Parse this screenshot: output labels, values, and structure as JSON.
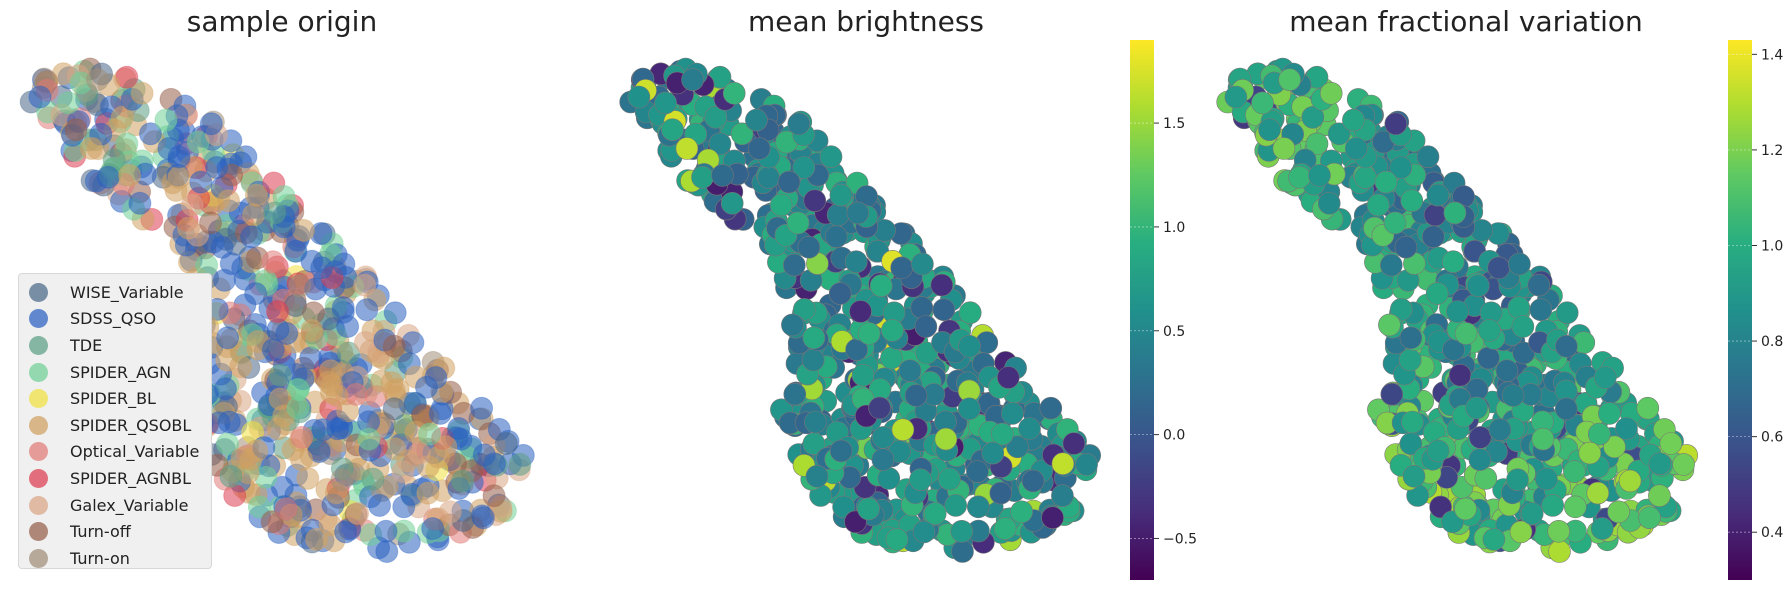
{
  "chart_data": [
    {
      "type": "scatter",
      "title": "sample origin",
      "legend_placement": "lower-left",
      "axes_visible": false,
      "grid": false,
      "series": [
        {
          "name": "WISE_Variable",
          "color": "#4a6888"
        },
        {
          "name": "SDSS_QSO",
          "color": "#2a60c0"
        },
        {
          "name": "TDE",
          "color": "#5b9e85"
        },
        {
          "name": "SPIDER_AGN",
          "color": "#6fcf96"
        },
        {
          "name": "SPIDER_BL",
          "color": "#f0e040"
        },
        {
          "name": "SPIDER_QSOBL",
          "color": "#d0a060"
        },
        {
          "name": "Optical_Variable",
          "color": "#e07a76"
        },
        {
          "name": "SPIDER_AGNBL",
          "color": "#dc3c50"
        },
        {
          "name": "Galex_Variable",
          "color": "#d9a585"
        },
        {
          "name": "Turn-off",
          "color": "#955e4a"
        },
        {
          "name": "Turn-on",
          "color": "#a08e78"
        }
      ]
    },
    {
      "type": "scatter",
      "title": "mean brightness",
      "colormap": "viridis",
      "colorbar": {
        "min": -0.7,
        "max": 1.9,
        "ticks": [
          "−0.5",
          "0.0",
          "0.5",
          "1.0",
          "1.5"
        ],
        "tick_values": [
          -0.5,
          0.0,
          0.5,
          1.0,
          1.5
        ]
      },
      "axes_visible": false,
      "grid": false
    },
    {
      "type": "scatter",
      "title": "mean fractional variation",
      "colormap": "viridis",
      "colorbar": {
        "min": 0.3,
        "max": 1.43,
        "ticks": [
          "0.4",
          "0.6",
          "0.8",
          "1.0",
          "1.2",
          "1.4"
        ],
        "tick_values": [
          0.4,
          0.6,
          0.8,
          1.0,
          1.2,
          1.4
        ]
      },
      "axes_visible": false,
      "grid": false
    }
  ]
}
